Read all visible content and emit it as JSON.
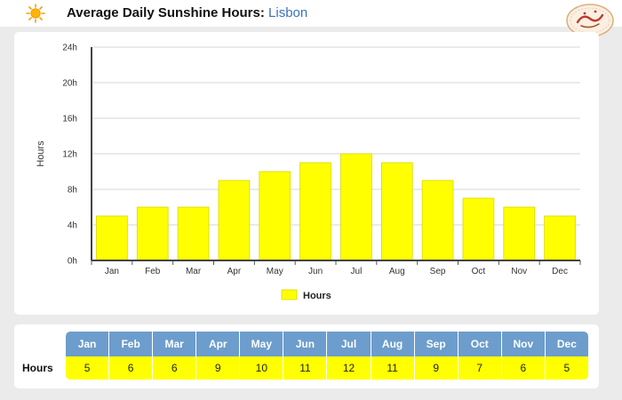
{
  "header": {
    "title_prefix": "Average Daily Sunshine Hours:",
    "city": "Lisbon"
  },
  "colors": {
    "bar": "#ffff00",
    "bar_stroke": "#d8d800",
    "table_header": "#6c9dcc",
    "city_link": "#3a73b8"
  },
  "icons": {
    "sun": "sun-icon",
    "logo": "logo-seal"
  },
  "chart_data": {
    "type": "bar",
    "title": "Average Daily Sunshine Hours: Lisbon",
    "xlabel": "",
    "ylabel": "Hours",
    "categories": [
      "Jan",
      "Feb",
      "Mar",
      "Apr",
      "May",
      "Jun",
      "Jul",
      "Aug",
      "Sep",
      "Oct",
      "Nov",
      "Dec"
    ],
    "series": [
      {
        "name": "Hours",
        "values": [
          5,
          6,
          6,
          9,
          10,
          11,
          12,
          11,
          9,
          7,
          6,
          5
        ]
      }
    ],
    "ylim": [
      0,
      24
    ],
    "yticks": [
      0,
      4,
      8,
      12,
      16,
      20,
      24
    ],
    "ytick_labels": [
      "0h",
      "4h",
      "8h",
      "12h",
      "16h",
      "20h",
      "24h"
    ],
    "grid": true,
    "legend_placement": "bottom-center"
  },
  "table": {
    "row_label": "Hours"
  }
}
